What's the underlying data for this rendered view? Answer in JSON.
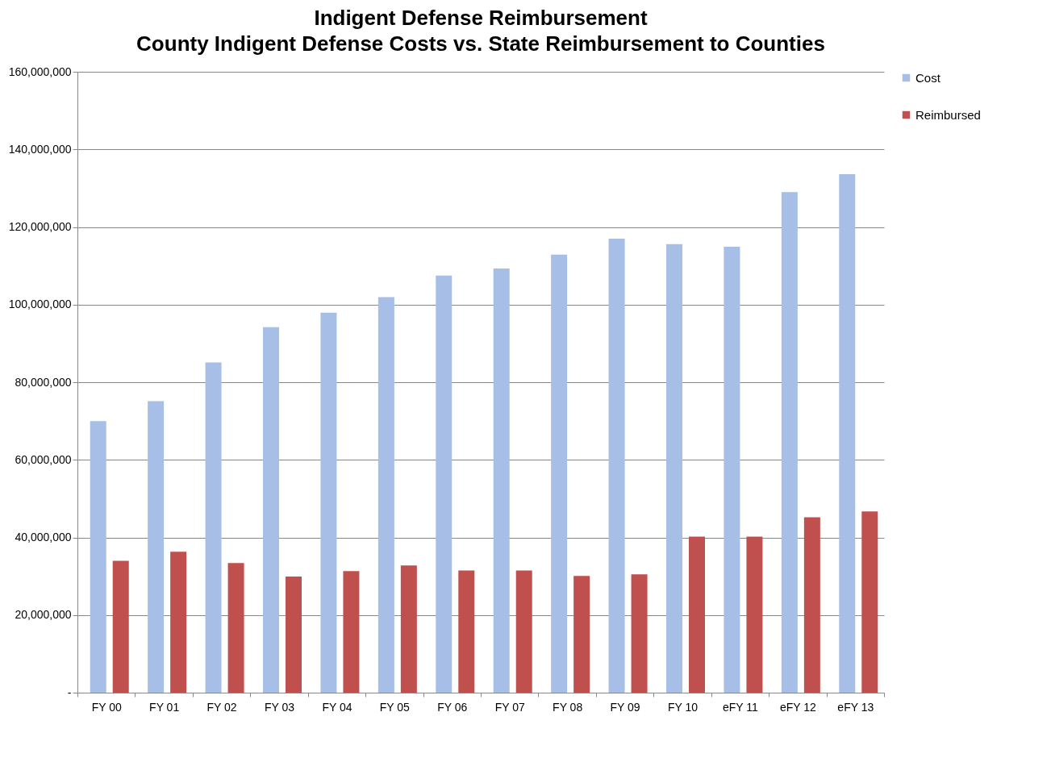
{
  "chart_data": {
    "type": "bar",
    "title": "Indigent Defense Reimbursement",
    "subtitle": "County Indigent Defense Costs vs. State Reimbursement to Counties",
    "categories": [
      "FY 00",
      "FY 01",
      "FY 02",
      "FY 03",
      "FY 04",
      "FY 05",
      "FY 06",
      "FY 07",
      "FY 08",
      "FY 09",
      "FY 10",
      "eFY 11",
      "eFY 12",
      "eFY 13"
    ],
    "series": [
      {
        "name": "Cost",
        "color": "#a7bee6",
        "values": [
          70000000,
          75100000,
          85100000,
          94200000,
          97900000,
          101900000,
          107500000,
          109300000,
          112900000,
          117000000,
          115600000,
          114900000,
          129000000,
          133600000
        ]
      },
      {
        "name": "Reimbursed",
        "color": "#c0504d",
        "values": [
          34000000,
          36300000,
          33400000,
          29900000,
          31300000,
          32800000,
          31500000,
          31500000,
          30100000,
          30500000,
          40200000,
          40200000,
          45200000,
          46700000
        ]
      }
    ],
    "ylim": [
      0,
      160000000
    ],
    "yticks": [
      {
        "value": 0,
        "label": "-"
      },
      {
        "value": 20000000,
        "label": "20,000,000"
      },
      {
        "value": 40000000,
        "label": "40,000,000"
      },
      {
        "value": 60000000,
        "label": "60,000,000"
      },
      {
        "value": 80000000,
        "label": "80,000,000"
      },
      {
        "value": 100000000,
        "label": "100,000,000"
      },
      {
        "value": 120000000,
        "label": "120,000,000"
      },
      {
        "value": 140000000,
        "label": "140,000,000"
      },
      {
        "value": 160000000,
        "label": "160,000,000"
      }
    ],
    "grid": "y",
    "legend": "right"
  }
}
